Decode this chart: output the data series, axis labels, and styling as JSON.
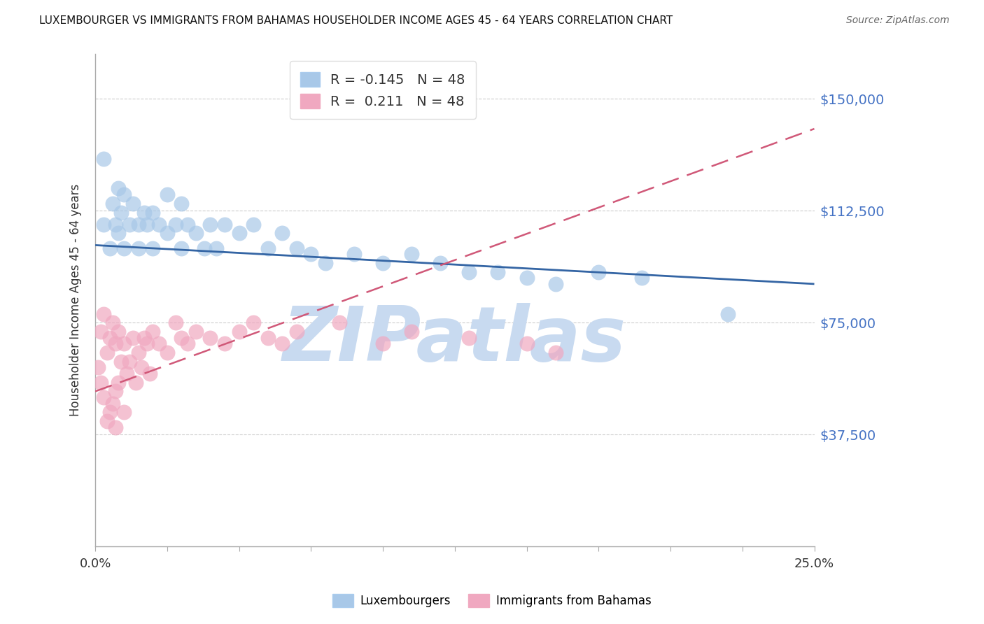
{
  "title": "LUXEMBOURGER VS IMMIGRANTS FROM BAHAMAS HOUSEHOLDER INCOME AGES 45 - 64 YEARS CORRELATION CHART",
  "source": "Source: ZipAtlas.com",
  "ylabel": "Householder Income Ages 45 - 64 years",
  "xlim": [
    0.0,
    0.25
  ],
  "ylim": [
    0,
    165000
  ],
  "yticks": [
    37500,
    75000,
    112500,
    150000
  ],
  "ytick_labels": [
    "$37,500",
    "$75,000",
    "$112,500",
    "$150,000"
  ],
  "legend_r_blue": "-0.145",
  "legend_r_pink": "0.211",
  "legend_n": 48,
  "blue_color": "#a8c8e8",
  "pink_color": "#f0a8c0",
  "trend_blue_color": "#3465a4",
  "trend_pink_color": "#d05878",
  "watermark": "ZIPatlas",
  "watermark_color": "#c8daf0",
  "blue_trend_x": [
    0.0,
    0.25
  ],
  "blue_trend_y": [
    101000,
    88000
  ],
  "pink_trend_x": [
    0.0,
    0.25
  ],
  "pink_trend_y": [
    52000,
    140000
  ],
  "blue_x": [
    0.003,
    0.005,
    0.006,
    0.007,
    0.008,
    0.008,
    0.009,
    0.01,
    0.01,
    0.012,
    0.013,
    0.015,
    0.015,
    0.017,
    0.018,
    0.02,
    0.02,
    0.022,
    0.025,
    0.025,
    0.028,
    0.03,
    0.03,
    0.032,
    0.035,
    0.038,
    0.04,
    0.042,
    0.045,
    0.05,
    0.055,
    0.06,
    0.065,
    0.07,
    0.075,
    0.08,
    0.09,
    0.1,
    0.11,
    0.12,
    0.13,
    0.14,
    0.15,
    0.16,
    0.175,
    0.19,
    0.22,
    0.003
  ],
  "blue_y": [
    108000,
    100000,
    115000,
    108000,
    120000,
    105000,
    112000,
    118000,
    100000,
    108000,
    115000,
    108000,
    100000,
    112000,
    108000,
    100000,
    112000,
    108000,
    118000,
    105000,
    108000,
    115000,
    100000,
    108000,
    105000,
    100000,
    108000,
    100000,
    108000,
    105000,
    108000,
    100000,
    105000,
    100000,
    98000,
    95000,
    98000,
    95000,
    98000,
    95000,
    92000,
    92000,
    90000,
    88000,
    92000,
    90000,
    78000,
    130000
  ],
  "pink_x": [
    0.001,
    0.002,
    0.002,
    0.003,
    0.003,
    0.004,
    0.004,
    0.005,
    0.005,
    0.006,
    0.006,
    0.007,
    0.007,
    0.007,
    0.008,
    0.008,
    0.009,
    0.01,
    0.01,
    0.011,
    0.012,
    0.013,
    0.014,
    0.015,
    0.016,
    0.017,
    0.018,
    0.019,
    0.02,
    0.022,
    0.025,
    0.028,
    0.03,
    0.032,
    0.035,
    0.04,
    0.045,
    0.05,
    0.055,
    0.06,
    0.065,
    0.07,
    0.085,
    0.1,
    0.11,
    0.13,
    0.15,
    0.16
  ],
  "pink_y": [
    60000,
    72000,
    55000,
    78000,
    50000,
    65000,
    42000,
    70000,
    45000,
    75000,
    48000,
    68000,
    52000,
    40000,
    72000,
    55000,
    62000,
    68000,
    45000,
    58000,
    62000,
    70000,
    55000,
    65000,
    60000,
    70000,
    68000,
    58000,
    72000,
    68000,
    65000,
    75000,
    70000,
    68000,
    72000,
    70000,
    68000,
    72000,
    75000,
    70000,
    68000,
    72000,
    75000,
    68000,
    72000,
    70000,
    68000,
    65000
  ]
}
